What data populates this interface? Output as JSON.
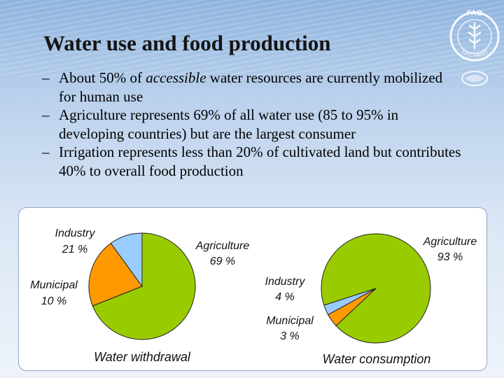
{
  "title": "Water use and food production",
  "bullets": [
    {
      "pre": "About 50% of ",
      "em": "accessible",
      "post": " water resources are  currently mobilized for human use"
    },
    {
      "pre": "Agriculture represents 69% of all water use (85 to 95% in developing countries) but are the largest consumer",
      "em": "",
      "post": ""
    },
    {
      "pre": "Irrigation represents less than 20% of cultivated land but contributes 40% to overall food production",
      "em": "",
      "post": ""
    }
  ],
  "logo": {
    "text": "FIAT PANIS",
    "letters": "FAO"
  },
  "chart_data": [
    {
      "type": "pie",
      "title": "Water withdrawal",
      "slices": [
        {
          "label": "Agriculture",
          "value": 69,
          "value_label": "69 %",
          "color": "#99cc00"
        },
        {
          "label": "Industry",
          "value": 21,
          "value_label": "21 %",
          "color": "#ff9900"
        },
        {
          "label": "Municipal",
          "value": 10,
          "value_label": "10 %",
          "color": "#99ccff"
        }
      ]
    },
    {
      "type": "pie",
      "title": "Water consumption",
      "slices": [
        {
          "label": "Agriculture",
          "value": 93,
          "value_label": "93 %",
          "color": "#99cc00"
        },
        {
          "label": "Industry",
          "value": 4,
          "value_label": "4 %",
          "color": "#ff9900"
        },
        {
          "label": "Municipal",
          "value": 3,
          "value_label": "3 %",
          "color": "#99ccff"
        }
      ]
    }
  ]
}
